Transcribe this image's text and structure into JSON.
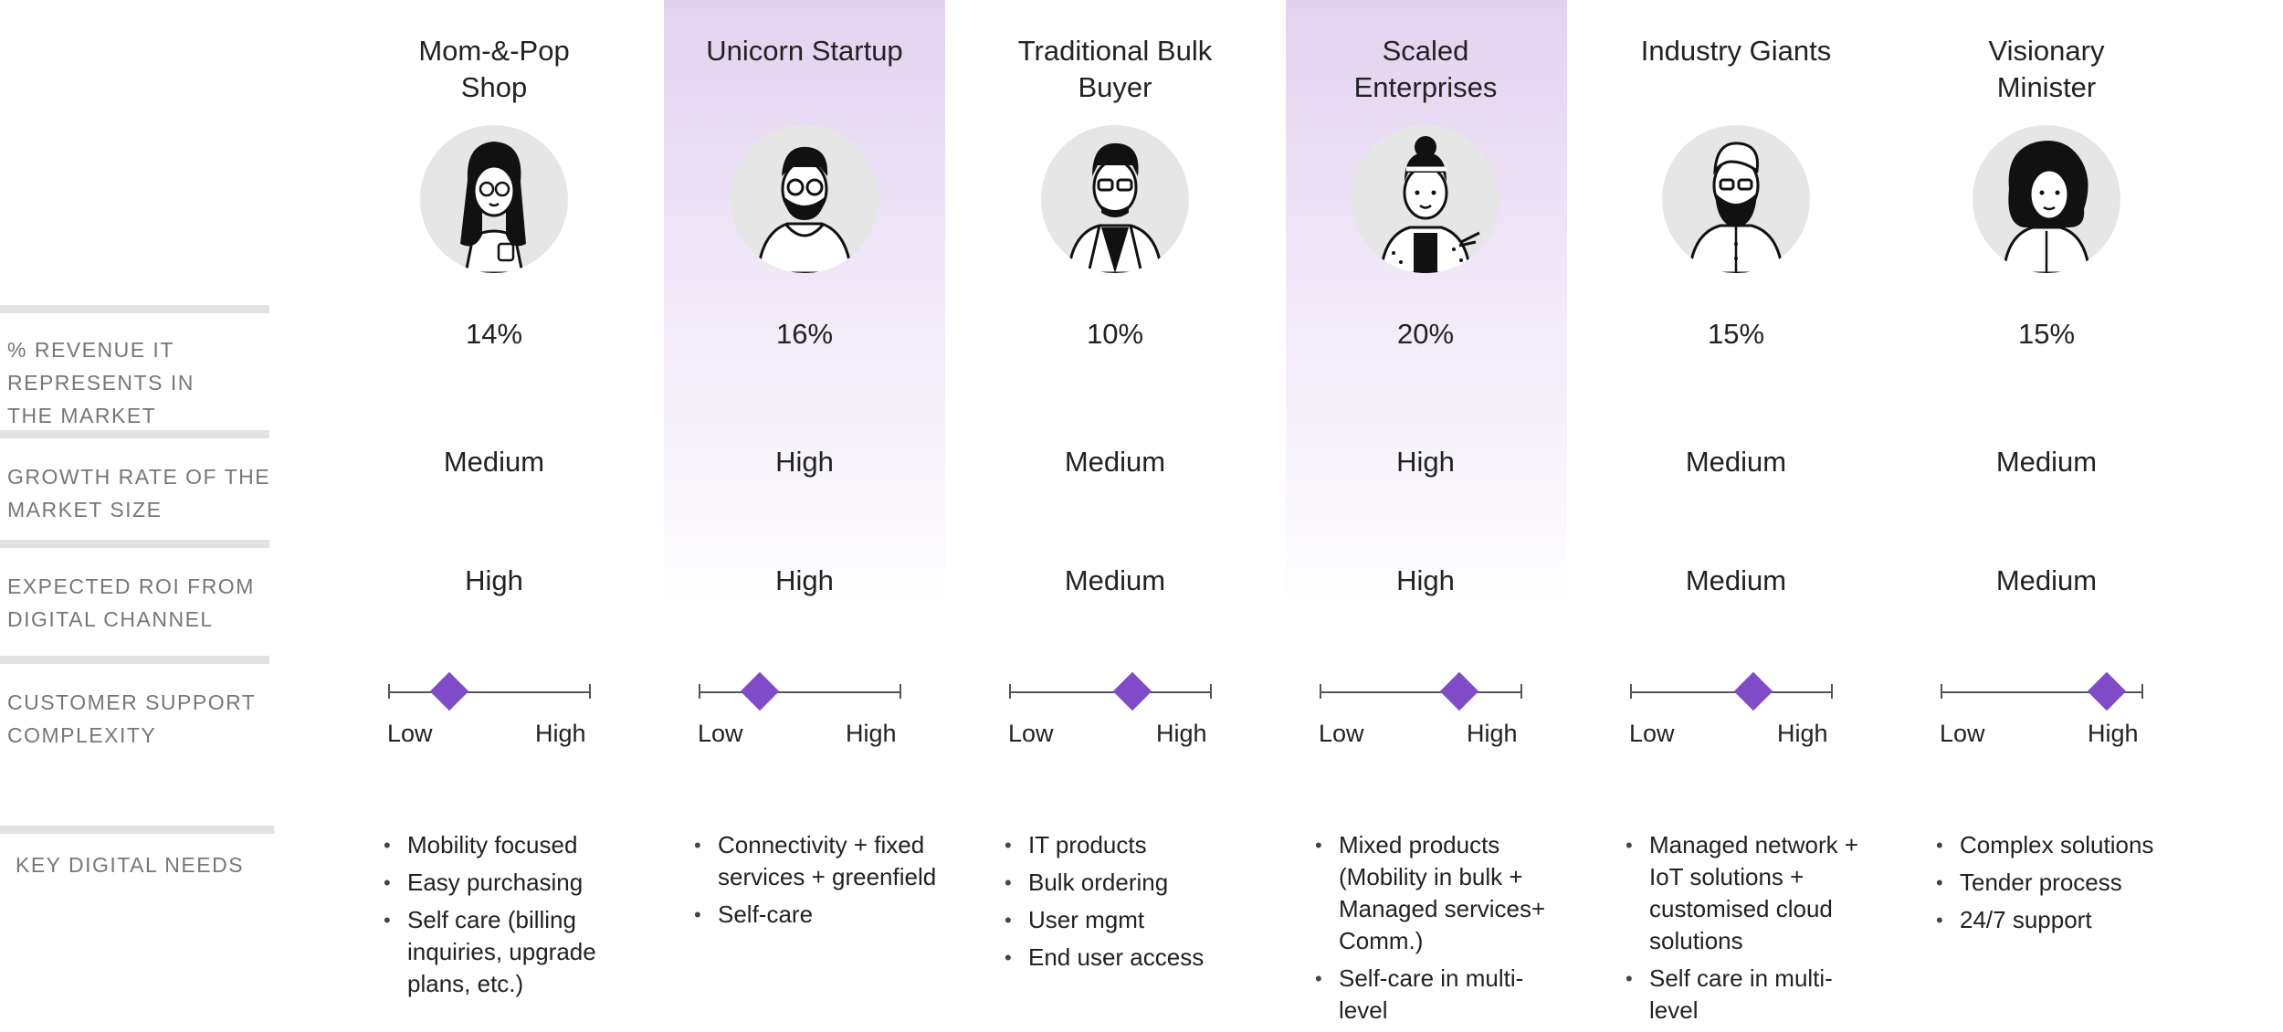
{
  "accent_color": "#7f4bc8",
  "row_labels": {
    "revenue": "% REVENUE IT REPRESENTS IN THE MARKET",
    "revenue_lines": [
      "% REVENUE IT",
      "REPRESENTS IN",
      "THE MARKET"
    ],
    "growth_lines": [
      "GROWTH RATE OF THE",
      "MARKET SIZE"
    ],
    "roi_lines": [
      "EXPECTED ROI FROM",
      "DIGITAL CHANNEL"
    ],
    "support_lines": [
      "CUSTOMER SUPPORT",
      "COMPLEXITY"
    ],
    "needs": "KEY DIGITAL NEEDS"
  },
  "segments": [
    {
      "title_lines": [
        "Mom-&-Pop",
        "Shop"
      ],
      "avatar_icon": "woman-long-hair-glasses-avatar-icon",
      "revenue": "14%",
      "growth": "Medium",
      "roi": "High",
      "support_complexity": 0.3,
      "low_label": "Low",
      "high_label": "High",
      "needs": [
        "Mobility focused",
        "Easy purchasing",
        "Self care (billing inquiries, upgrade plans, etc.)"
      ],
      "highlighted": false
    },
    {
      "title_lines": [
        "Unicorn Startup"
      ],
      "avatar_icon": "man-beard-hoodie-avatar-icon",
      "revenue": "16%",
      "growth": "High",
      "roi": "High",
      "support_complexity": 0.3,
      "low_label": "Low",
      "high_label": "High",
      "needs": [
        "Connectivity + fixed services + greenfield",
        "Self-care"
      ],
      "highlighted": true
    },
    {
      "title_lines": [
        "Traditional Bulk",
        "Buyer"
      ],
      "avatar_icon": "man-glasses-suit-avatar-icon",
      "revenue": "10%",
      "growth": "Medium",
      "roi": "Medium",
      "support_complexity": 0.61,
      "low_label": "Low",
      "high_label": "High",
      "needs": [
        "IT products",
        "Bulk ordering",
        "User mgmt",
        "End user access"
      ],
      "highlighted": false
    },
    {
      "title_lines": [
        "Scaled",
        "Enterprises"
      ],
      "avatar_icon": "woman-headband-pointing-avatar-icon",
      "revenue": "20%",
      "growth": "High",
      "roi": "High",
      "support_complexity": 0.69,
      "low_label": "Low",
      "high_label": "High",
      "needs": [
        "Mixed products (Mobility in bulk + Managed services+ Comm.)",
        "Self-care in multi-level"
      ],
      "highlighted": true
    },
    {
      "title_lines": [
        "Industry Giants"
      ],
      "avatar_icon": "man-beard-shirt-avatar-icon",
      "revenue": "15%",
      "growth": "Medium",
      "roi": "Medium",
      "support_complexity": 0.61,
      "low_label": "Low",
      "high_label": "High",
      "needs": [
        "Managed network + IoT solutions + customised cloud solutions",
        "Self care in multi-level"
      ],
      "highlighted": false
    },
    {
      "title_lines": [
        "Visionary",
        "Minister"
      ],
      "avatar_icon": "woman-curly-hair-avatar-icon",
      "revenue": "15%",
      "growth": "Medium",
      "roi": "Medium",
      "support_complexity": 0.82,
      "low_label": "Low",
      "high_label": "High",
      "needs": [
        "Complex solutions",
        "Tender process",
        "24/7 support"
      ],
      "highlighted": false
    }
  ]
}
